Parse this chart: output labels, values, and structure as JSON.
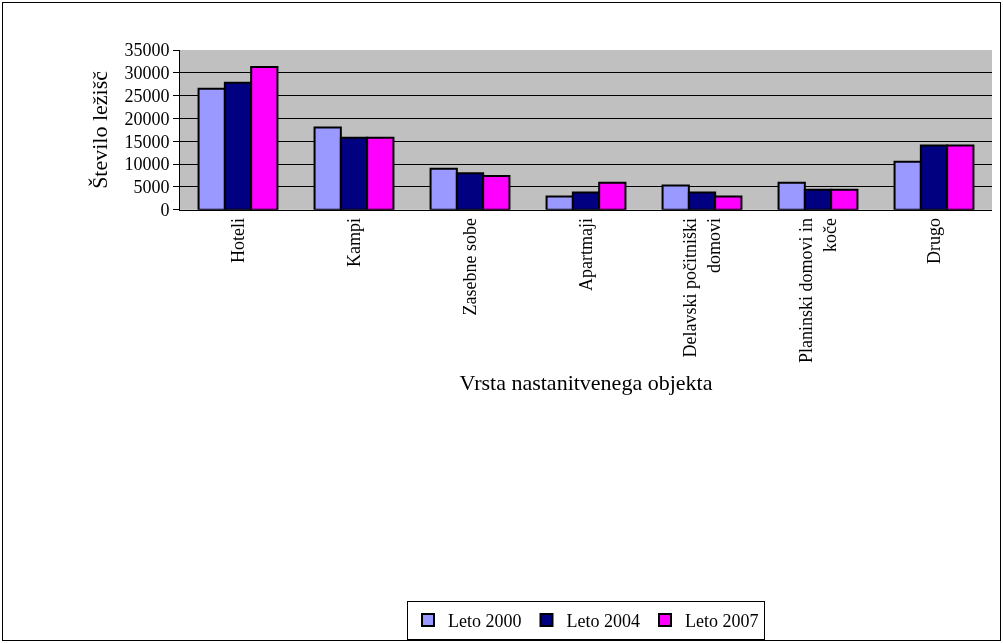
{
  "chart_data": {
    "type": "bar",
    "xlabel": "Vrsta nastanitvenega objekta",
    "ylabel": "Število ležišč",
    "categories": [
      "Hoteli",
      "Kampi",
      "Zasebne sobe",
      "Apartmaji",
      "Delavski počitniški domovi",
      "Planinski domovi in koče",
      "Drugo"
    ],
    "series": [
      {
        "name": "Leto 2000",
        "color": "#9999ff",
        "values": [
          26500,
          18000,
          9000,
          2900,
          5300,
          5900,
          10500
        ]
      },
      {
        "name": "Leto 2004",
        "color": "#000080",
        "values": [
          27800,
          15800,
          8000,
          3800,
          3800,
          4400,
          14100
        ]
      },
      {
        "name": "Leto 2007",
        "color": "#ff00ff",
        "values": [
          31300,
          15800,
          7400,
          5900,
          2900,
          4400,
          14100
        ]
      }
    ],
    "ylim": [
      0,
      35000
    ],
    "yticks": [
      0,
      5000,
      10000,
      15000,
      20000,
      25000,
      30000,
      35000
    ],
    "grid": "y",
    "legend": "bottom"
  }
}
